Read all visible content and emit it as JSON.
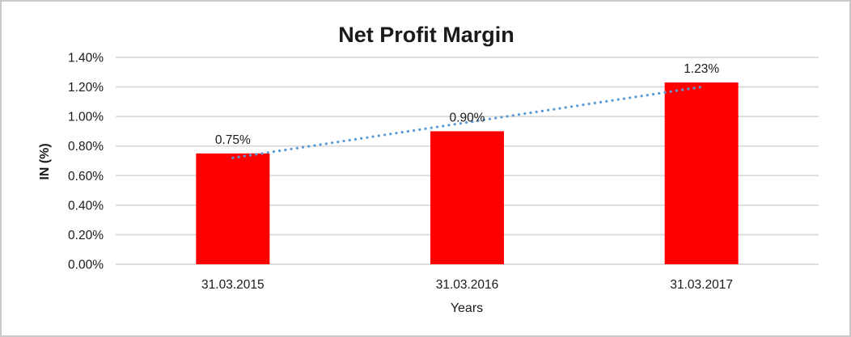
{
  "frame": {
    "background": "#ffffff",
    "border_color": "#c9c9c9"
  },
  "chart_data": {
    "type": "bar",
    "title": "Net Profit Margin",
    "xlabel": "Years",
    "ylabel": "IN (%)",
    "categories": [
      "31.03.2015",
      "31.03.2016",
      "31.03.2017"
    ],
    "values": [
      0.75,
      0.9,
      1.23
    ],
    "data_labels": [
      "0.75%",
      "0.90%",
      "1.23%"
    ],
    "ylim": [
      0,
      1.4
    ],
    "ytick_step": 0.2,
    "ytick_labels": [
      "0.00%",
      "0.20%",
      "0.40%",
      "0.60%",
      "0.80%",
      "1.00%",
      "1.20%",
      "1.40%"
    ],
    "grid": true,
    "legend": "none",
    "bar_color": "#ff0000",
    "gridline_color": "#d9d9d9",
    "text_color": "#1a1a1a",
    "trendline": {
      "type": "linear",
      "style": "dotted",
      "color": "#5b9bd5"
    }
  }
}
